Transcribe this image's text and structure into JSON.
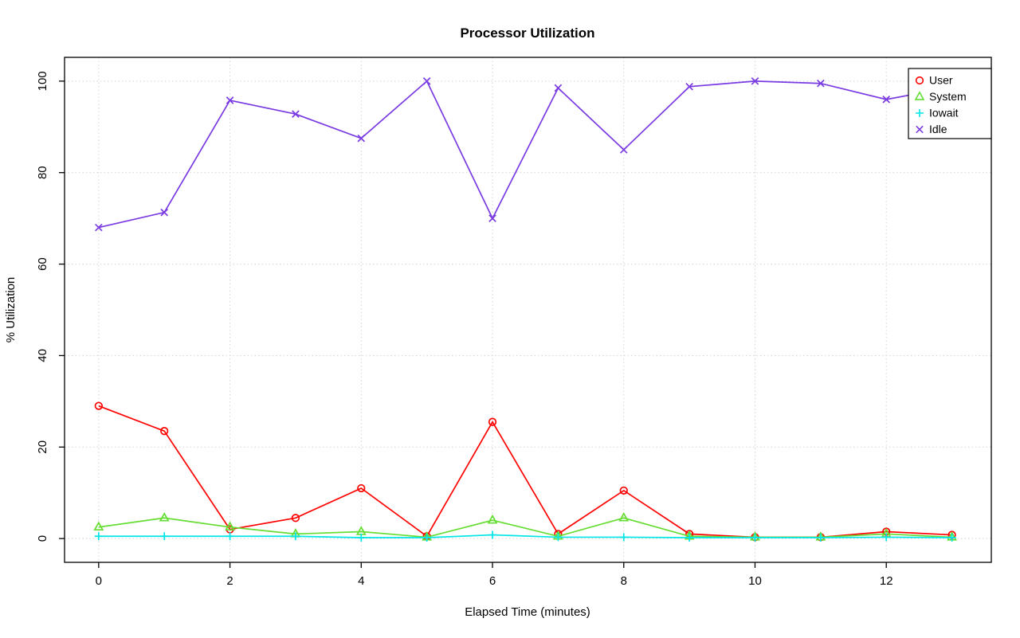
{
  "page": {
    "background": "#ffffff"
  },
  "chart_data": {
    "type": "line",
    "title": "Processor Utilization",
    "xlabel": "Elapsed Time (minutes)",
    "ylabel": "% Utilization",
    "x": [
      0,
      1,
      2,
      3,
      4,
      5,
      6,
      7,
      8,
      9,
      10,
      11,
      12,
      13
    ],
    "xticks": [
      0,
      2,
      4,
      6,
      8,
      10,
      12
    ],
    "yticks": [
      0,
      20,
      40,
      60,
      80,
      100
    ],
    "xlim": [
      -0.52,
      13.6
    ],
    "ylim": [
      -5.2,
      105.2
    ],
    "grid": true,
    "grid_style": "dotted",
    "grid_color": "#d4d4d4",
    "legend_position": "top-right",
    "series": [
      {
        "name": "User",
        "color": "#ff0000",
        "marker": "circle",
        "values": [
          29,
          23.5,
          2,
          4.5,
          11,
          0.5,
          25.5,
          1,
          10.5,
          1,
          0.3,
          0.3,
          1.5,
          0.8
        ]
      },
      {
        "name": "System",
        "color": "#66dd33",
        "marker": "triangle",
        "values": [
          2.5,
          4.5,
          2.5,
          1,
          1.5,
          0.3,
          4,
          0.5,
          4.5,
          0.5,
          0.3,
          0.3,
          1,
          0.3
        ]
      },
      {
        "name": "Iowait",
        "color": "#00e5e5",
        "marker": "plus",
        "values": [
          0.5,
          0.5,
          0.5,
          0.5,
          0.2,
          0.2,
          0.8,
          0.3,
          0.3,
          0.2,
          0.2,
          0.2,
          0.3,
          0.2
        ]
      },
      {
        "name": "Idle",
        "color": "#7a3be2",
        "marker": "x",
        "values": [
          68,
          71.3,
          95.8,
          92.8,
          87.5,
          100,
          70,
          98.5,
          85,
          98.8,
          100,
          99.5,
          96,
          98.7
        ]
      }
    ]
  }
}
